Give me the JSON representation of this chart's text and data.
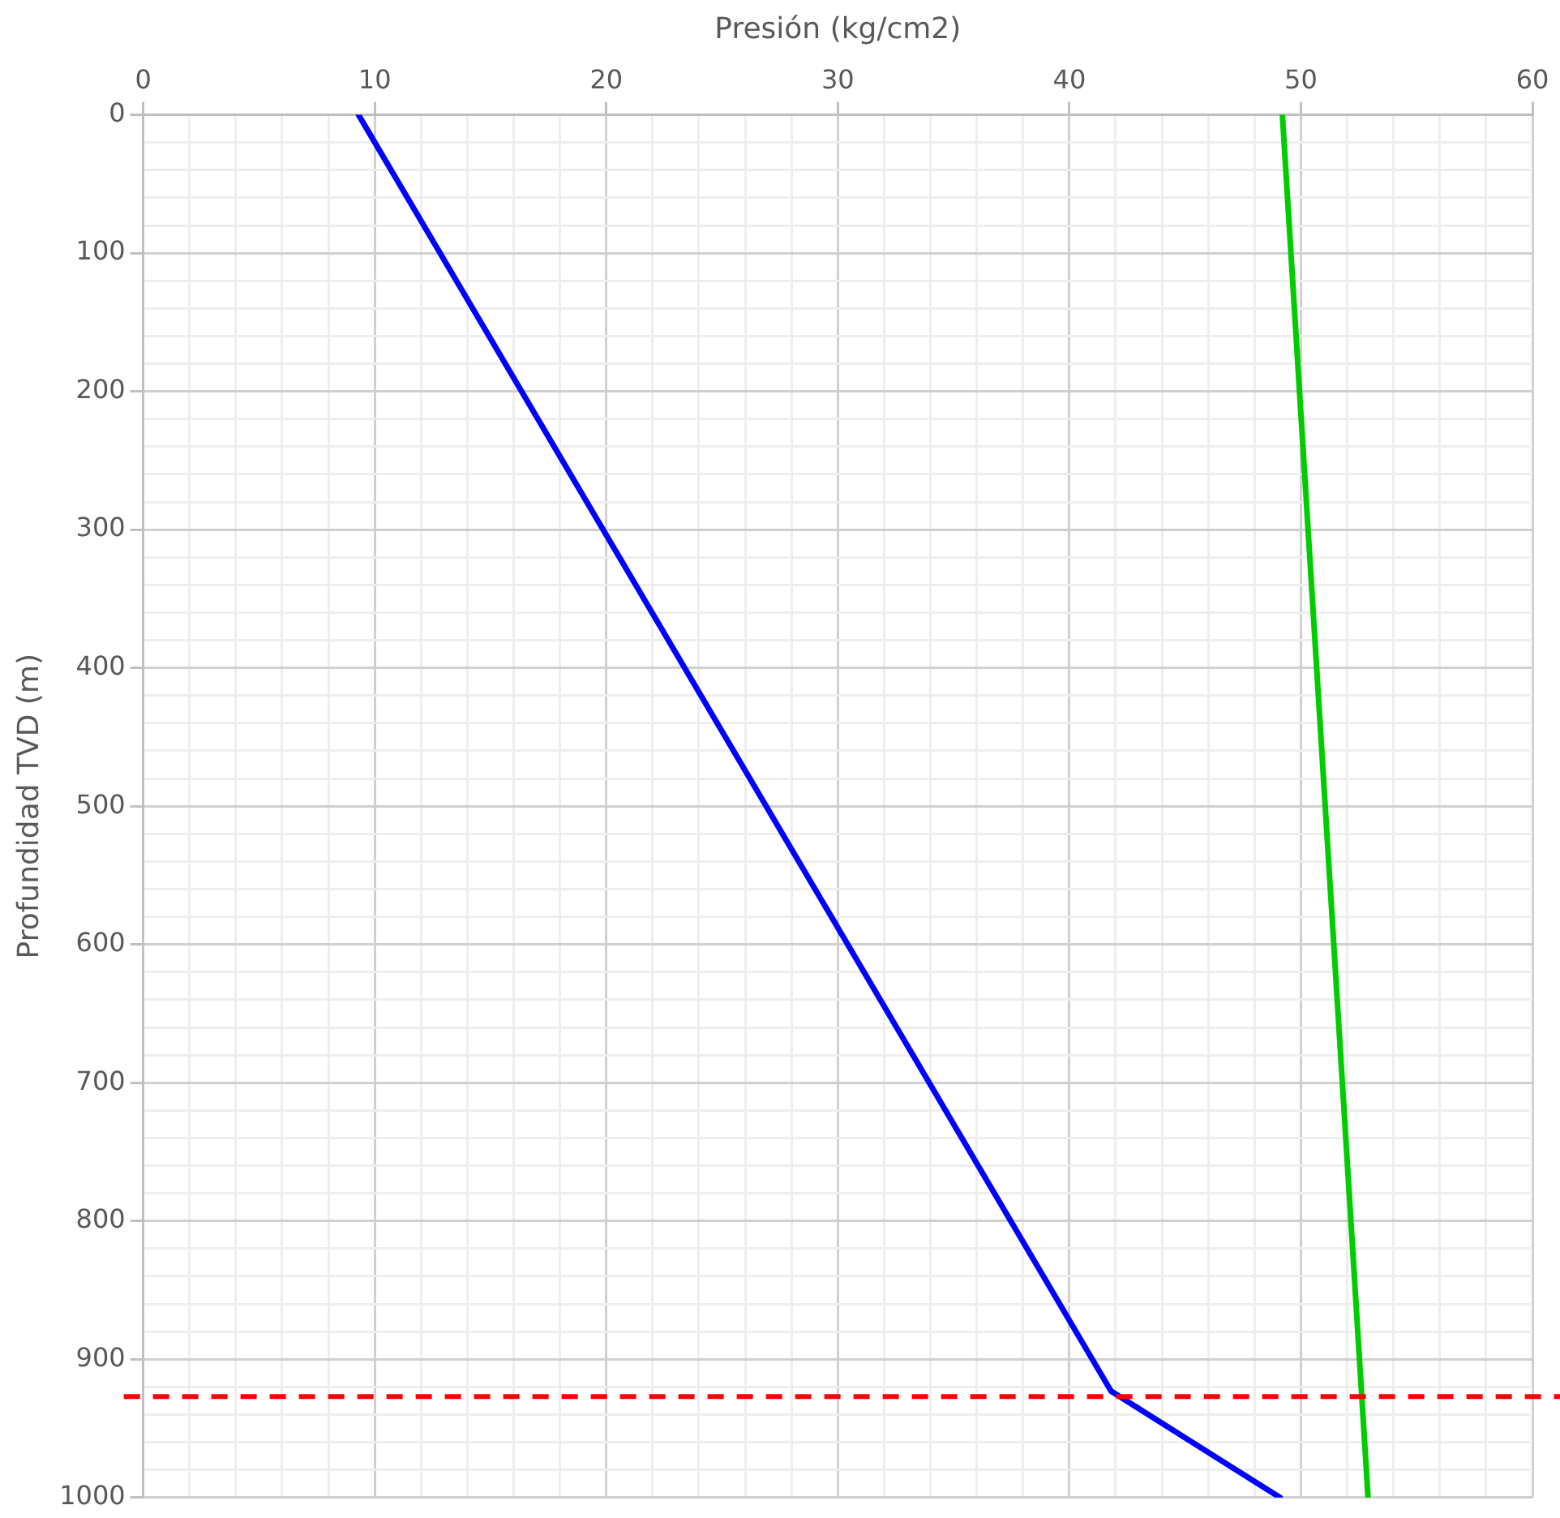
{
  "chart_data": {
    "type": "line",
    "xlabel": "Presión (kg/cm2)",
    "ylabel": "Profundidad TVD (m)",
    "xlim": [
      0,
      60
    ],
    "xticks": [
      0,
      {
        "value": 2,
        "label": null
      },
      {
        "value": 4,
        "label": null
      },
      {
        "value": 6,
        "label": null
      },
      {
        "value": 8,
        "label": null
      },
      10,
      {
        "value": 12,
        "label": null
      },
      {
        "value": 14,
        "label": null
      },
      {
        "value": 16,
        "label": null
      },
      {
        "value": 18,
        "label": null
      },
      20,
      {
        "value": 22,
        "label": null
      },
      {
        "value": 24,
        "label": null
      },
      {
        "value": 26,
        "label": null
      },
      {
        "value": 28,
        "label": null
      },
      30,
      {
        "value": 32,
        "label": null
      },
      {
        "value": 34,
        "label": null
      },
      {
        "value": 36,
        "label": null
      },
      {
        "value": 38,
        "label": null
      },
      40,
      {
        "value": 42,
        "label": null
      },
      {
        "value": 44,
        "label": null
      },
      {
        "value": 46,
        "label": null
      },
      {
        "value": 48,
        "label": null
      },
      50,
      {
        "value": 52,
        "label": null
      },
      {
        "value": 54,
        "label": null
      },
      {
        "value": 56,
        "label": null
      },
      {
        "value": 58,
        "label": null
      },
      60
    ],
    "ylim": [
      1000,
      0
    ],
    "yticks": [
      0,
      {
        "value": 20,
        "label": null
      },
      {
        "value": 40,
        "label": null
      },
      {
        "value": 60,
        "label": null
      },
      {
        "value": 80,
        "label": null
      },
      100,
      {
        "value": 120,
        "label": null
      },
      {
        "value": 140,
        "label": null
      },
      {
        "value": 160,
        "label": null
      },
      {
        "value": 180,
        "label": null
      },
      200,
      {
        "value": 220,
        "label": null
      },
      {
        "value": 240,
        "label": null
      },
      {
        "value": 260,
        "label": null
      },
      {
        "value": 280,
        "label": null
      },
      300,
      {
        "value": 320,
        "label": null
      },
      {
        "value": 340,
        "label": null
      },
      {
        "value": 360,
        "label": null
      },
      {
        "value": 380,
        "label": null
      },
      400,
      {
        "value": 420,
        "label": null
      },
      {
        "value": 440,
        "label": null
      },
      {
        "value": 460,
        "label": null
      },
      {
        "value": 480,
        "label": null
      },
      500,
      {
        "value": 520,
        "label": null
      },
      {
        "value": 540,
        "label": null
      },
      {
        "value": 560,
        "label": null
      },
      {
        "value": 580,
        "label": null
      },
      600,
      {
        "value": 620,
        "label": null
      },
      {
        "value": 640,
        "label": null
      },
      {
        "value": 660,
        "label": null
      },
      {
        "value": 680,
        "label": null
      },
      700,
      {
        "value": 720,
        "label": null
      },
      {
        "value": 740,
        "label": null
      },
      {
        "value": 760,
        "label": null
      },
      {
        "value": 780,
        "label": null
      },
      800,
      {
        "value": 820,
        "label": null
      },
      {
        "value": 840,
        "label": null
      },
      {
        "value": 860,
        "label": null
      },
      {
        "value": 880,
        "label": null
      },
      900,
      {
        "value": 920,
        "label": null
      },
      {
        "value": 940,
        "label": null
      },
      {
        "value": 960,
        "label": null
      },
      {
        "value": 980,
        "label": null
      },
      1000
    ],
    "grid": true,
    "legend": false,
    "marker": "none",
    "line_style": "solid",
    "series": [
      {
        "color": "#0000ff",
        "x": [
          9.3,
          41.8,
          49.1
        ],
        "values": [
          0,
          923,
          1000
        ]
      },
      {
        "color": "#00cc00",
        "x": [
          49.2,
          52.9
        ],
        "values": [
          0,
          1000
        ]
      }
    ],
    "ref_lines": [
      {
        "axis": "y",
        "value": 927,
        "color": "#ff0000",
        "line_style": "dashed"
      }
    ]
  }
}
